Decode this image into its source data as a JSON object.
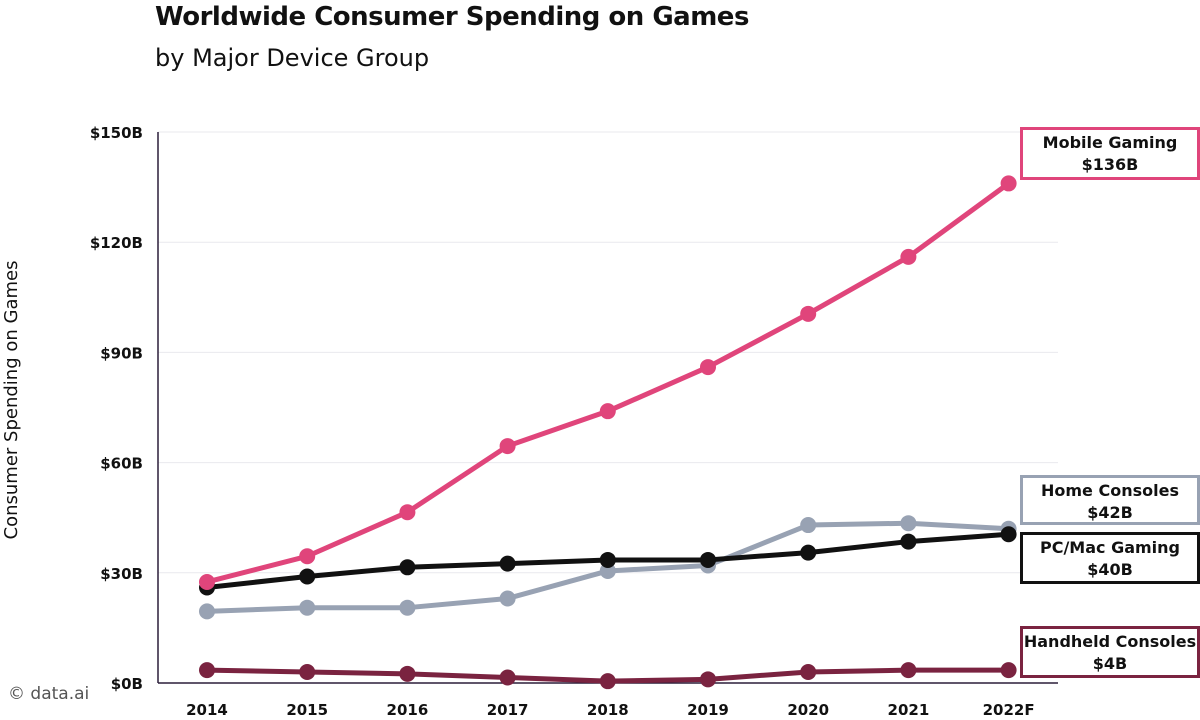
{
  "title": "Worldwide Consumer Spending on Games",
  "subtitle": "by Major Device Group",
  "watermark": "© data.ai",
  "chart_data": {
    "type": "line",
    "title": "Worldwide Consumer Spending on Games",
    "subtitle": "by Major Device Group",
    "xlabel": "",
    "ylabel": "Consumer Spending on Games",
    "categories": [
      "2014",
      "2015",
      "2016",
      "2017",
      "2018",
      "2019",
      "2020",
      "2021",
      "2022F"
    ],
    "ylim": [
      0,
      150
    ],
    "yticks": [
      0,
      30,
      60,
      90,
      120,
      150
    ],
    "ytick_labels": [
      "$0B",
      "$30B",
      "$60B",
      "$90B",
      "$120B",
      "$150B"
    ],
    "grid": true,
    "series": [
      {
        "name": "Mobile Gaming",
        "value_label": "$136B",
        "color": "#e0457b",
        "values": [
          27.5,
          34.5,
          46.5,
          64.5,
          74,
          86,
          100.5,
          116,
          136
        ]
      },
      {
        "name": "Home Consoles",
        "value_label": "$42B",
        "color": "#98a2b3",
        "values": [
          19.5,
          20.5,
          20.5,
          23,
          30.5,
          32,
          43,
          43.5,
          42
        ]
      },
      {
        "name": "PC/Mac Gaming",
        "value_label": "$40B",
        "color": "#111111",
        "values": [
          26,
          29,
          31.5,
          32.5,
          33.5,
          33.5,
          35.5,
          38.5,
          40.5
        ]
      },
      {
        "name": "Handheld Consoles",
        "value_label": "$4B",
        "color": "#7a2340",
        "values": [
          3.5,
          3,
          2.5,
          1.5,
          0.5,
          1,
          3,
          3.5,
          3.5
        ]
      }
    ]
  }
}
